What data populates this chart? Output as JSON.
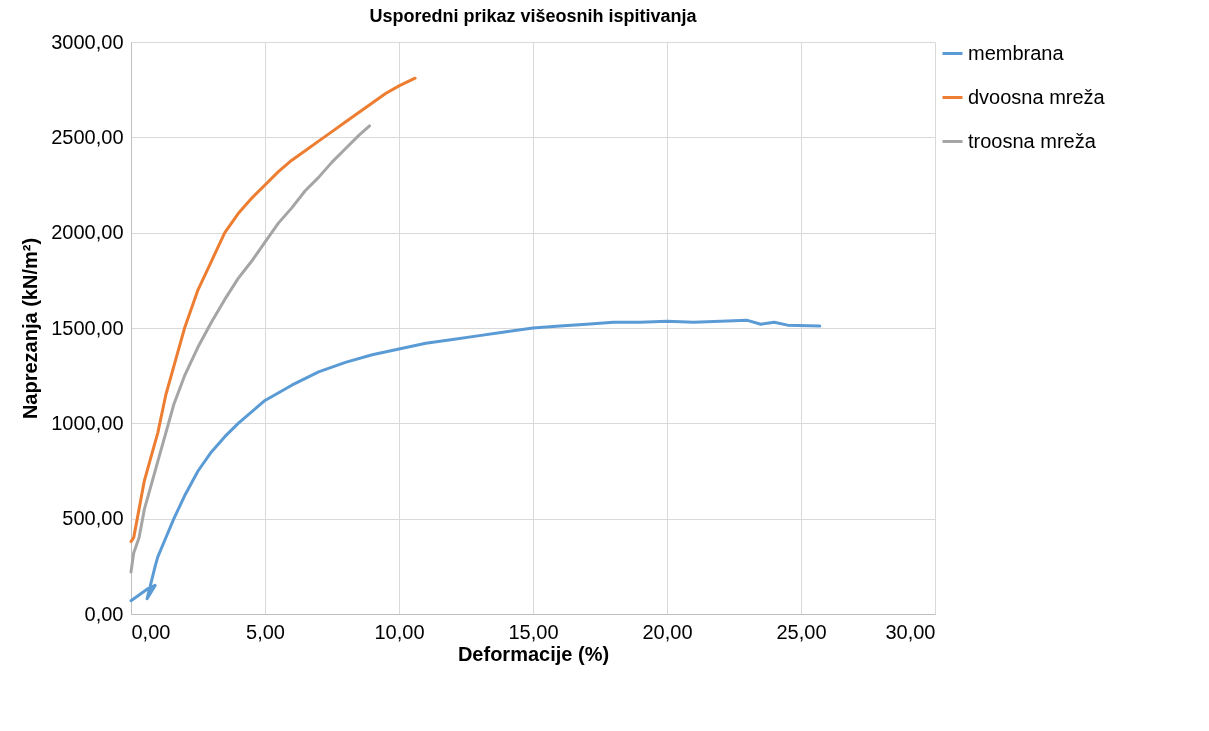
{
  "chart_data": {
    "type": "line",
    "title": "Usporedni prikaz višeosnih ispitivanja",
    "xlabel": "Deformacije (%)",
    "ylabel": "Naprezanja (kN/m²)",
    "xlim": [
      0,
      30
    ],
    "ylim": [
      0,
      3000
    ],
    "xticks": [
      {
        "value": 0,
        "label": "0,00"
      },
      {
        "value": 5,
        "label": "5,00"
      },
      {
        "value": 10,
        "label": "10,00"
      },
      {
        "value": 15,
        "label": "15,00"
      },
      {
        "value": 20,
        "label": "20,00"
      },
      {
        "value": 25,
        "label": "25,00"
      },
      {
        "value": 30,
        "label": "30,00"
      }
    ],
    "yticks": [
      {
        "value": 0,
        "label": "0,00"
      },
      {
        "value": 500,
        "label": "500,00"
      },
      {
        "value": 1000,
        "label": "1000,00"
      },
      {
        "value": 1500,
        "label": "1500,00"
      },
      {
        "value": 2000,
        "label": "2000,00"
      },
      {
        "value": 2500,
        "label": "2500,00"
      },
      {
        "value": 3000,
        "label": "3000,00"
      }
    ],
    "grid": true,
    "legend": "right",
    "marker": "none",
    "line_style": "solid",
    "series": [
      {
        "name": "membrana",
        "color": "#5b9bd5",
        "x": [
          0,
          0.6,
          0.9,
          0.6,
          0.9,
          1.0,
          1.3,
          1.6,
          2.0,
          2.5,
          3.0,
          3.5,
          4.0,
          4.5,
          5.0,
          6.0,
          7.0,
          8.0,
          9.0,
          10.0,
          11.0,
          12.0,
          13.0,
          14.0,
          15.0,
          16.0,
          17.0,
          18.0,
          19.0,
          20.0,
          21.0,
          22.0,
          23.0,
          23.5,
          24.0,
          24.5,
          25.7
        ],
        "values": [
          70,
          130,
          150,
          80,
          250,
          300,
          400,
          500,
          620,
          750,
          850,
          930,
          1000,
          1060,
          1120,
          1200,
          1270,
          1320,
          1360,
          1390,
          1420,
          1440,
          1460,
          1480,
          1500,
          1510,
          1520,
          1530,
          1530,
          1535,
          1530,
          1535,
          1540,
          1520,
          1530,
          1515,
          1510
        ]
      },
      {
        "name": "dvoosna mreža",
        "color": "#ed7d31",
        "x": [
          0,
          0.1,
          0.3,
          0.5,
          0.8,
          1.0,
          1.3,
          1.6,
          2.0,
          2.5,
          3.0,
          3.5,
          4.0,
          4.5,
          5.0,
          5.5,
          6.0,
          6.5,
          7.0,
          7.5,
          8.0,
          8.5,
          9.0,
          9.5,
          10.0,
          10.6
        ],
        "values": [
          380,
          400,
          550,
          700,
          850,
          950,
          1150,
          1300,
          1500,
          1700,
          1850,
          2000,
          2100,
          2180,
          2250,
          2320,
          2380,
          2430,
          2480,
          2530,
          2580,
          2630,
          2680,
          2730,
          2770,
          2810
        ]
      },
      {
        "name": "troosna mreža",
        "color": "#a5a5a5",
        "x": [
          0,
          0.1,
          0.3,
          0.5,
          0.8,
          1.0,
          1.3,
          1.6,
          2.0,
          2.5,
          3.0,
          3.5,
          4.0,
          4.5,
          5.0,
          5.5,
          6.0,
          6.5,
          7.0,
          7.5,
          8.0,
          8.5,
          8.9
        ],
        "values": [
          220,
          320,
          400,
          550,
          700,
          800,
          950,
          1100,
          1250,
          1400,
          1530,
          1650,
          1760,
          1850,
          1950,
          2050,
          2130,
          2220,
          2290,
          2370,
          2440,
          2510,
          2560
        ]
      }
    ]
  }
}
